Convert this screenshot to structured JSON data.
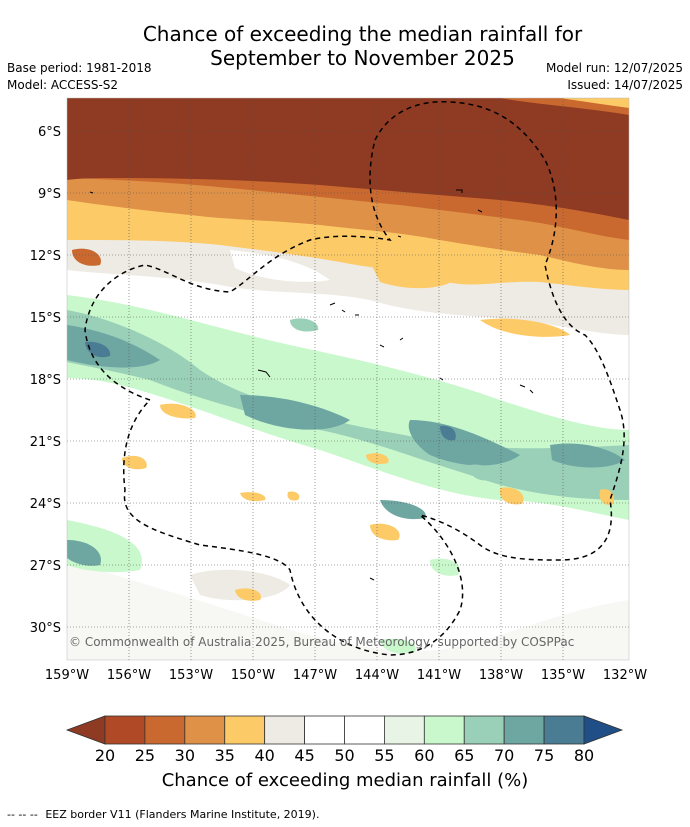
{
  "title_line1": "Chance of exceeding the median rainfall for",
  "title_line2": "September to November 2025",
  "base_period": "Base period: 1981-2018",
  "model": "Model: ACCESS-S2",
  "model_run": "Model run: 12/07/2025",
  "issued": "Issued: 14/07/2025",
  "copyright": "© Commonwealth of Australia 2025, Bureau of Meteorology, supported by COSPPac",
  "lat_labels": [
    "6°S",
    "9°S",
    "12°S",
    "15°S",
    "18°S",
    "21°S",
    "24°S",
    "27°S",
    "30°S"
  ],
  "lon_labels": [
    "159°W",
    "156°W",
    "153°W",
    "150°W",
    "147°W",
    "144°W",
    "141°W",
    "138°W",
    "135°W",
    "132°W"
  ],
  "colorbar": {
    "title": "Chance of exceeding median rainfall (%)",
    "ticks": [
      "20",
      "25",
      "30",
      "35",
      "40",
      "45",
      "50",
      "55",
      "60",
      "65",
      "70",
      "75",
      "80"
    ],
    "colors": [
      "#8f3a22",
      "#b04a26",
      "#c9692f",
      "#de9147",
      "#fdca68",
      "#eeebe4",
      "#ffffff",
      "#ffffff",
      "#e8f4e6",
      "#c8f8cb",
      "#9acfb8",
      "#6ea6a2",
      "#4a7d93",
      "#1f4f86"
    ]
  },
  "legend_note": {
    "dashes": "-- -- --",
    "label": "EEZ border V11 (Flanders Marine Institute, 2019)."
  }
}
